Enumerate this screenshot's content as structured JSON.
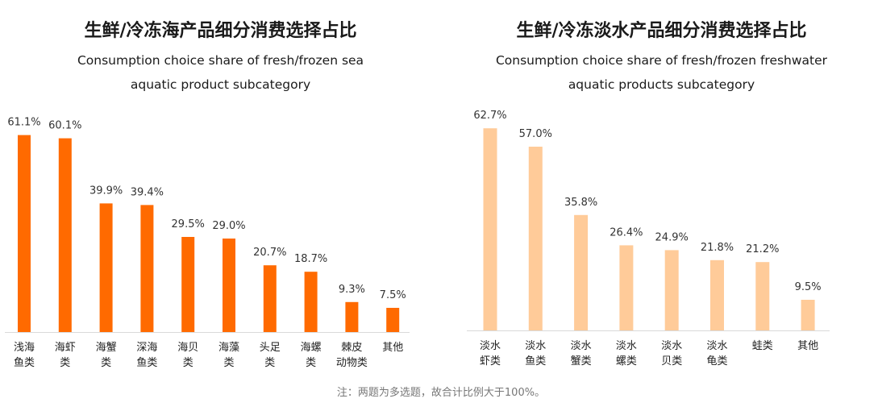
{
  "chart_data": [
    {
      "type": "bar",
      "title": "生鲜/冷冻海产品细分消费选择占比",
      "subtitle_lines": [
        "Consumption choice share of fresh/frozen sea",
        "aquatic product subcategory"
      ],
      "categories": [
        [
          "浅海",
          "鱼类"
        ],
        [
          "海虾",
          "类"
        ],
        [
          "海蟹",
          "类"
        ],
        [
          "深海",
          "鱼类"
        ],
        [
          "海贝",
          "类"
        ],
        [
          "海藻",
          "类"
        ],
        [
          "头足",
          "类"
        ],
        [
          "海螺",
          "类"
        ],
        [
          "棘皮",
          "动物类"
        ],
        [
          "其他"
        ]
      ],
      "values": [
        61.1,
        60.1,
        39.9,
        39.4,
        29.5,
        29.0,
        20.7,
        18.7,
        9.3,
        7.5
      ],
      "value_labels": [
        "61.1%",
        "60.1%",
        "39.9%",
        "39.4%",
        "29.5%",
        "29.0%",
        "20.7%",
        "18.7%",
        "9.3%",
        "7.5%"
      ],
      "color": "#FF6A00",
      "ylim": [
        0,
        65
      ]
    },
    {
      "type": "bar",
      "title": "生鲜/冷冻淡水产品细分消费选择占比",
      "subtitle_lines": [
        "Consumption choice share of fresh/frozen freshwater",
        "aquatic products subcategory"
      ],
      "categories": [
        [
          "淡水",
          "虾类"
        ],
        [
          "淡水",
          "鱼类"
        ],
        [
          "淡水",
          "蟹类"
        ],
        [
          "淡水",
          "螺类"
        ],
        [
          "淡水",
          "贝类"
        ],
        [
          "淡水",
          "龟类"
        ],
        [
          "蛙类"
        ],
        [
          "其他"
        ]
      ],
      "values": [
        62.7,
        57.0,
        35.8,
        26.4,
        24.9,
        21.8,
        21.2,
        9.5
      ],
      "value_labels": [
        "62.7%",
        "57.0%",
        "35.8%",
        "26.4%",
        "24.9%",
        "21.8%",
        "21.2%",
        "9.5%"
      ],
      "color": "#FFCB99",
      "ylim": [
        0,
        65
      ]
    }
  ],
  "note": "注：两题为多选题，故合计比例大于100%。"
}
